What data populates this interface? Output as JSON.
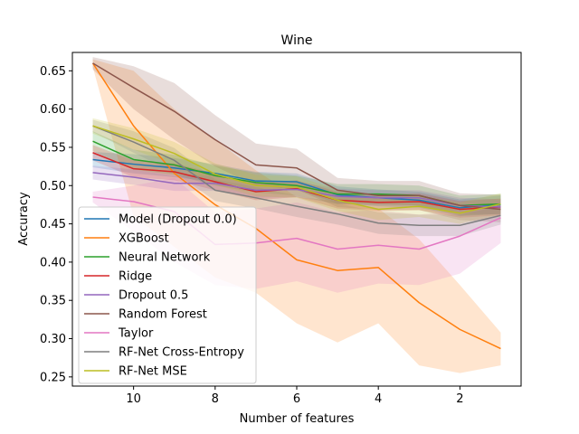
{
  "chart_data": {
    "type": "line",
    "title": "Wine",
    "xlabel": "Number of features",
    "ylabel": "Accuracy",
    "xlim": [
      11.5,
      0.5
    ],
    "ylim": [
      0.238,
      0.674
    ],
    "x_inverted": true,
    "xticks": [
      10,
      8,
      6,
      4,
      2
    ],
    "yticks": [
      0.25,
      0.3,
      0.35,
      0.4,
      0.45,
      0.5,
      0.55,
      0.6,
      0.65
    ],
    "grid": false,
    "legend_position": "lower-left",
    "x": [
      11,
      10,
      9,
      8,
      7,
      6,
      5,
      4,
      3,
      2,
      1
    ],
    "series": [
      {
        "name": "Model (Dropout 0.0)",
        "color": "#1f77b4",
        "values": [
          0.534,
          0.528,
          0.523,
          0.516,
          0.506,
          0.505,
          0.488,
          0.484,
          0.481,
          0.471,
          0.475
        ],
        "band": [
          [
            0.524,
            0.544
          ],
          [
            0.516,
            0.541
          ],
          [
            0.511,
            0.536
          ],
          [
            0.505,
            0.528
          ],
          [
            0.495,
            0.518
          ],
          [
            0.494,
            0.516
          ],
          [
            0.477,
            0.499
          ],
          [
            0.473,
            0.495
          ],
          [
            0.471,
            0.492
          ],
          [
            0.46,
            0.482
          ],
          [
            0.463,
            0.487
          ]
        ]
      },
      {
        "name": "XGBoost",
        "color": "#ff7f0e",
        "values": [
          0.66,
          0.578,
          0.516,
          0.475,
          0.444,
          0.403,
          0.389,
          0.393,
          0.347,
          0.312,
          0.287
        ],
        "band": [
          [
            0.655,
            0.665
          ],
          [
            0.46,
            0.65
          ],
          [
            0.42,
            0.6
          ],
          [
            0.38,
            0.56
          ],
          [
            0.36,
            0.52
          ],
          [
            0.32,
            0.485
          ],
          [
            0.295,
            0.48
          ],
          [
            0.32,
            0.47
          ],
          [
            0.265,
            0.43
          ],
          [
            0.255,
            0.37
          ],
          [
            0.265,
            0.308
          ]
        ]
      },
      {
        "name": "Neural Network",
        "color": "#2ca02c",
        "values": [
          0.558,
          0.534,
          0.527,
          0.513,
          0.504,
          0.5,
          0.489,
          0.489,
          0.487,
          0.474,
          0.476
        ],
        "band": [
          [
            0.545,
            0.571
          ],
          [
            0.521,
            0.547
          ],
          [
            0.514,
            0.54
          ],
          [
            0.5,
            0.526
          ],
          [
            0.491,
            0.517
          ],
          [
            0.487,
            0.513
          ],
          [
            0.476,
            0.502
          ],
          [
            0.476,
            0.502
          ],
          [
            0.474,
            0.5
          ],
          [
            0.461,
            0.487
          ],
          [
            0.463,
            0.489
          ]
        ]
      },
      {
        "name": "Ridge",
        "color": "#d62728",
        "values": [
          0.543,
          0.522,
          0.518,
          0.505,
          0.492,
          0.496,
          0.481,
          0.478,
          0.479,
          0.469,
          0.472
        ],
        "band": [
          [
            0.533,
            0.553
          ],
          [
            0.511,
            0.533
          ],
          [
            0.507,
            0.529
          ],
          [
            0.494,
            0.516
          ],
          [
            0.481,
            0.503
          ],
          [
            0.485,
            0.507
          ],
          [
            0.47,
            0.492
          ],
          [
            0.467,
            0.489
          ],
          [
            0.468,
            0.49
          ],
          [
            0.458,
            0.48
          ],
          [
            0.461,
            0.483
          ]
        ]
      },
      {
        "name": "Dropout 0.5",
        "color": "#9467bd",
        "values": [
          0.517,
          0.511,
          0.503,
          0.503,
          0.494,
          0.495,
          0.486,
          0.484,
          0.484,
          0.474,
          0.472
        ],
        "band": [
          [
            0.508,
            0.526
          ],
          [
            0.501,
            0.521
          ],
          [
            0.493,
            0.513
          ],
          [
            0.493,
            0.513
          ],
          [
            0.484,
            0.504
          ],
          [
            0.485,
            0.505
          ],
          [
            0.476,
            0.496
          ],
          [
            0.474,
            0.494
          ],
          [
            0.474,
            0.494
          ],
          [
            0.464,
            0.484
          ],
          [
            0.462,
            0.482
          ]
        ]
      },
      {
        "name": "Random Forest",
        "color": "#8c564b",
        "values": [
          0.66,
          0.628,
          0.597,
          0.56,
          0.527,
          0.523,
          0.494,
          0.487,
          0.487,
          0.474,
          0.469
        ],
        "band": [
          [
            0.652,
            0.668
          ],
          [
            0.6,
            0.656
          ],
          [
            0.56,
            0.634
          ],
          [
            0.525,
            0.592
          ],
          [
            0.5,
            0.555
          ],
          [
            0.495,
            0.548
          ],
          [
            0.472,
            0.51
          ],
          [
            0.468,
            0.506
          ],
          [
            0.468,
            0.506
          ],
          [
            0.455,
            0.49
          ],
          [
            0.452,
            0.488
          ]
        ]
      },
      {
        "name": "Taylor",
        "color": "#e377c2",
        "values": [
          0.485,
          0.479,
          0.466,
          0.423,
          0.425,
          0.431,
          0.417,
          0.422,
          0.417,
          0.434,
          0.458
        ],
        "band": [
          [
            0.478,
            0.492
          ],
          [
            0.44,
            0.5
          ],
          [
            0.4,
            0.51
          ],
          [
            0.37,
            0.465
          ],
          [
            0.365,
            0.47
          ],
          [
            0.375,
            0.478
          ],
          [
            0.36,
            0.465
          ],
          [
            0.372,
            0.468
          ],
          [
            0.37,
            0.462
          ],
          [
            0.385,
            0.468
          ],
          [
            0.425,
            0.478
          ]
        ]
      },
      {
        "name": "RF-Net Cross-Entropy",
        "color": "#7f7f7f",
        "values": [
          0.578,
          0.557,
          0.533,
          0.494,
          0.484,
          0.473,
          0.463,
          0.451,
          0.448,
          0.448,
          0.461
        ],
        "band": [
          [
            0.57,
            0.586
          ],
          [
            0.543,
            0.571
          ],
          [
            0.517,
            0.549
          ],
          [
            0.48,
            0.508
          ],
          [
            0.47,
            0.498
          ],
          [
            0.459,
            0.487
          ],
          [
            0.449,
            0.477
          ],
          [
            0.437,
            0.465
          ],
          [
            0.434,
            0.462
          ],
          [
            0.434,
            0.462
          ],
          [
            0.449,
            0.473
          ]
        ]
      },
      {
        "name": "RF-Net MSE",
        "color": "#bcbd22",
        "values": [
          0.578,
          0.561,
          0.542,
          0.515,
          0.5,
          0.498,
          0.481,
          0.469,
          0.473,
          0.464,
          0.476
        ],
        "band": [
          [
            0.568,
            0.588
          ],
          [
            0.547,
            0.575
          ],
          [
            0.527,
            0.557
          ],
          [
            0.501,
            0.529
          ],
          [
            0.486,
            0.514
          ],
          [
            0.484,
            0.512
          ],
          [
            0.467,
            0.495
          ],
          [
            0.455,
            0.483
          ],
          [
            0.459,
            0.487
          ],
          [
            0.45,
            0.478
          ],
          [
            0.462,
            0.49
          ]
        ]
      }
    ]
  }
}
